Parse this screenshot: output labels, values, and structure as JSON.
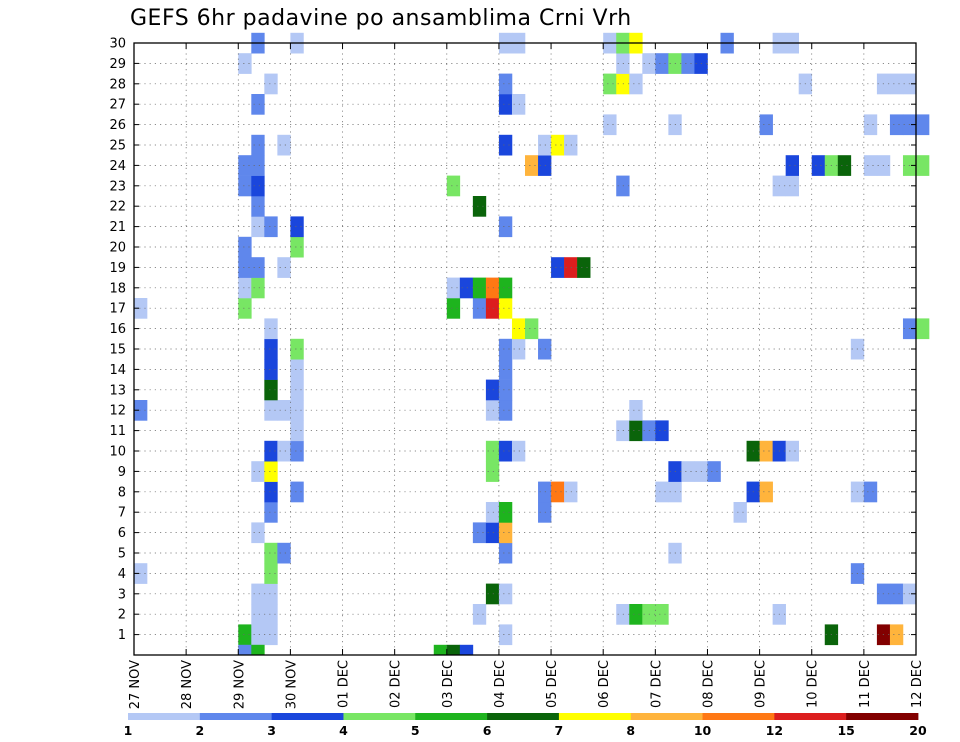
{
  "chart_data": {
    "type": "heatmap",
    "title": "GEFS 6hr padavine po ansamblima Crni Vrh",
    "xlabel": "",
    "ylabel": "",
    "x_tick_labels": [
      "27 NOV",
      "28 NOV",
      "29 NOV",
      "30 NOV",
      "01 DEC",
      "02 DEC",
      "03 DEC",
      "04 DEC",
      "05 DEC",
      "06 DEC",
      "07 DEC",
      "08 DEC",
      "09 DEC",
      "10 DEC",
      "11 DEC",
      "12 DEC"
    ],
    "x_range_days": [
      0,
      15
    ],
    "y_tick_labels": [
      "1",
      "2",
      "3",
      "4",
      "5",
      "6",
      "7",
      "8",
      "9",
      "10",
      "11",
      "12",
      "13",
      "14",
      "15",
      "16",
      "17",
      "18",
      "19",
      "20",
      "21",
      "22",
      "23",
      "24",
      "25",
      "26",
      "27",
      "28",
      "29",
      "30"
    ],
    "y_range": [
      0,
      30
    ],
    "time_step_days": 0.25,
    "grid": true,
    "colorbar": {
      "bounds": [
        1,
        2,
        3,
        4,
        5,
        6,
        7,
        8,
        10,
        12,
        15,
        20
      ],
      "labels": [
        "1",
        "2",
        "3",
        "4",
        "5",
        "6",
        "7",
        "8",
        "10",
        "12",
        "15",
        "20"
      ],
      "colors": [
        "#b4c8f5",
        "#5f87ec",
        "#1a46dc",
        "#78e664",
        "#1eb41e",
        "#0a640a",
        "#ffff00",
        "#ffb43c",
        "#ff7814",
        "#dc1e1e",
        "#820000"
      ],
      "position": "bottom"
    },
    "cells": [
      {
        "member": 1,
        "t": 8,
        "cls": 5
      },
      {
        "member": 1,
        "t": 9,
        "cls": 1
      },
      {
        "member": 1,
        "t": 10,
        "cls": 1
      },
      {
        "member": 1,
        "t": 28,
        "cls": 1
      },
      {
        "member": 1,
        "t": 53,
        "cls": 6
      },
      {
        "member": 1,
        "t": 57,
        "cls": 11
      },
      {
        "member": 1,
        "t": 58,
        "cls": 8
      },
      {
        "member": 2,
        "t": 9,
        "cls": 1
      },
      {
        "member": 2,
        "t": 10,
        "cls": 1
      },
      {
        "member": 2,
        "t": 26,
        "cls": 1
      },
      {
        "member": 2,
        "t": 37,
        "cls": 1
      },
      {
        "member": 2,
        "t": 38,
        "cls": 5
      },
      {
        "member": 2,
        "t": 39,
        "cls": 4
      },
      {
        "member": 2,
        "t": 40,
        "cls": 4
      },
      {
        "member": 2,
        "t": 49,
        "cls": 1
      },
      {
        "member": 3,
        "t": 9,
        "cls": 1
      },
      {
        "member": 3,
        "t": 10,
        "cls": 1
      },
      {
        "member": 3,
        "t": 27,
        "cls": 6
      },
      {
        "member": 3,
        "t": 28,
        "cls": 1
      },
      {
        "member": 3,
        "t": 57,
        "cls": 2
      },
      {
        "member": 3,
        "t": 58,
        "cls": 2
      },
      {
        "member": 3,
        "t": 59,
        "cls": 1
      },
      {
        "member": 4,
        "t": 0,
        "cls": 1
      },
      {
        "member": 4,
        "t": 10,
        "cls": 4
      },
      {
        "member": 4,
        "t": 55,
        "cls": 2
      },
      {
        "member": 5,
        "t": 10,
        "cls": 4
      },
      {
        "member": 5,
        "t": 11,
        "cls": 2
      },
      {
        "member": 5,
        "t": 28,
        "cls": 2
      },
      {
        "member": 5,
        "t": 41,
        "cls": 1
      },
      {
        "member": 6,
        "t": 9,
        "cls": 1
      },
      {
        "member": 6,
        "t": 26,
        "cls": 2
      },
      {
        "member": 6,
        "t": 27,
        "cls": 3
      },
      {
        "member": 6,
        "t": 28,
        "cls": 8
      },
      {
        "member": 7,
        "t": 10,
        "cls": 2
      },
      {
        "member": 7,
        "t": 27,
        "cls": 1
      },
      {
        "member": 7,
        "t": 28,
        "cls": 5
      },
      {
        "member": 7,
        "t": 31,
        "cls": 2
      },
      {
        "member": 7,
        "t": 46,
        "cls": 1
      },
      {
        "member": 8,
        "t": 10,
        "cls": 3
      },
      {
        "member": 8,
        "t": 12,
        "cls": 2
      },
      {
        "member": 8,
        "t": 31,
        "cls": 2
      },
      {
        "member": 8,
        "t": 32,
        "cls": 9
      },
      {
        "member": 8,
        "t": 33,
        "cls": 1
      },
      {
        "member": 8,
        "t": 40,
        "cls": 1
      },
      {
        "member": 8,
        "t": 41,
        "cls": 1
      },
      {
        "member": 8,
        "t": 47,
        "cls": 3
      },
      {
        "member": 8,
        "t": 48,
        "cls": 8
      },
      {
        "member": 8,
        "t": 55,
        "cls": 1
      },
      {
        "member": 8,
        "t": 56,
        "cls": 2
      },
      {
        "member": 9,
        "t": 9,
        "cls": 1
      },
      {
        "member": 9,
        "t": 10,
        "cls": 7
      },
      {
        "member": 9,
        "t": 27,
        "cls": 4
      },
      {
        "member": 9,
        "t": 41,
        "cls": 3
      },
      {
        "member": 9,
        "t": 42,
        "cls": 1
      },
      {
        "member": 9,
        "t": 43,
        "cls": 1
      },
      {
        "member": 9,
        "t": 44,
        "cls": 2
      },
      {
        "member": 10,
        "t": 10,
        "cls": 3
      },
      {
        "member": 10,
        "t": 11,
        "cls": 1
      },
      {
        "member": 10,
        "t": 12,
        "cls": 2
      },
      {
        "member": 10,
        "t": 27,
        "cls": 4
      },
      {
        "member": 10,
        "t": 28,
        "cls": 3
      },
      {
        "member": 10,
        "t": 29,
        "cls": 1
      },
      {
        "member": 10,
        "t": 47,
        "cls": 6
      },
      {
        "member": 10,
        "t": 48,
        "cls": 8
      },
      {
        "member": 10,
        "t": 49,
        "cls": 3
      },
      {
        "member": 10,
        "t": 50,
        "cls": 1
      },
      {
        "member": 11,
        "t": 12,
        "cls": 1
      },
      {
        "member": 11,
        "t": 37,
        "cls": 1
      },
      {
        "member": 11,
        "t": 38,
        "cls": 6
      },
      {
        "member": 11,
        "t": 39,
        "cls": 2
      },
      {
        "member": 11,
        "t": 40,
        "cls": 3
      },
      {
        "member": 12,
        "t": 0,
        "cls": 2
      },
      {
        "member": 12,
        "t": 10,
        "cls": 1
      },
      {
        "member": 12,
        "t": 11,
        "cls": 1
      },
      {
        "member": 12,
        "t": 12,
        "cls": 1
      },
      {
        "member": 12,
        "t": 27,
        "cls": 1
      },
      {
        "member": 12,
        "t": 28,
        "cls": 2
      },
      {
        "member": 12,
        "t": 38,
        "cls": 1
      },
      {
        "member": 13,
        "t": 10,
        "cls": 6
      },
      {
        "member": 13,
        "t": 12,
        "cls": 1
      },
      {
        "member": 13,
        "t": 27,
        "cls": 3
      },
      {
        "member": 13,
        "t": 28,
        "cls": 2
      },
      {
        "member": 14,
        "t": 10,
        "cls": 3
      },
      {
        "member": 14,
        "t": 12,
        "cls": 1
      },
      {
        "member": 14,
        "t": 28,
        "cls": 2
      },
      {
        "member": 15,
        "t": 10,
        "cls": 3
      },
      {
        "member": 15,
        "t": 12,
        "cls": 4
      },
      {
        "member": 15,
        "t": 28,
        "cls": 2
      },
      {
        "member": 15,
        "t": 29,
        "cls": 1
      },
      {
        "member": 15,
        "t": 31,
        "cls": 2
      },
      {
        "member": 15,
        "t": 55,
        "cls": 1
      },
      {
        "member": 16,
        "t": 10,
        "cls": 1
      },
      {
        "member": 16,
        "t": 29,
        "cls": 7
      },
      {
        "member": 16,
        "t": 30,
        "cls": 4
      },
      {
        "member": 16,
        "t": 59,
        "cls": 2
      },
      {
        "member": 16,
        "t": 60,
        "cls": 4
      },
      {
        "member": 17,
        "t": 0,
        "cls": 1
      },
      {
        "member": 17,
        "t": 8,
        "cls": 4
      },
      {
        "member": 17,
        "t": 24,
        "cls": 5
      },
      {
        "member": 17,
        "t": 26,
        "cls": 2
      },
      {
        "member": 17,
        "t": 27,
        "cls": 10
      },
      {
        "member": 17,
        "t": 28,
        "cls": 7
      },
      {
        "member": 18,
        "t": 8,
        "cls": 1
      },
      {
        "member": 18,
        "t": 9,
        "cls": 4
      },
      {
        "member": 18,
        "t": 24,
        "cls": 1
      },
      {
        "member": 18,
        "t": 25,
        "cls": 3
      },
      {
        "member": 18,
        "t": 26,
        "cls": 5
      },
      {
        "member": 18,
        "t": 27,
        "cls": 9
      },
      {
        "member": 18,
        "t": 28,
        "cls": 5
      },
      {
        "member": 19,
        "t": 8,
        "cls": 2
      },
      {
        "member": 19,
        "t": 9,
        "cls": 2
      },
      {
        "member": 19,
        "t": 11,
        "cls": 1
      },
      {
        "member": 19,
        "t": 32,
        "cls": 3
      },
      {
        "member": 19,
        "t": 33,
        "cls": 10
      },
      {
        "member": 19,
        "t": 34,
        "cls": 6
      },
      {
        "member": 20,
        "t": 8,
        "cls": 2
      },
      {
        "member": 20,
        "t": 12,
        "cls": 4
      },
      {
        "member": 21,
        "t": 9,
        "cls": 1
      },
      {
        "member": 21,
        "t": 10,
        "cls": 2
      },
      {
        "member": 21,
        "t": 12,
        "cls": 3
      },
      {
        "member": 21,
        "t": 28,
        "cls": 2
      },
      {
        "member": 22,
        "t": 9,
        "cls": 2
      },
      {
        "member": 22,
        "t": 26,
        "cls": 6
      },
      {
        "member": 23,
        "t": 8,
        "cls": 2
      },
      {
        "member": 23,
        "t": 9,
        "cls": 3
      },
      {
        "member": 23,
        "t": 24,
        "cls": 4
      },
      {
        "member": 23,
        "t": 37,
        "cls": 2
      },
      {
        "member": 23,
        "t": 49,
        "cls": 1
      },
      {
        "member": 23,
        "t": 50,
        "cls": 1
      },
      {
        "member": 24,
        "t": 8,
        "cls": 2
      },
      {
        "member": 24,
        "t": 9,
        "cls": 2
      },
      {
        "member": 24,
        "t": 30,
        "cls": 8
      },
      {
        "member": 24,
        "t": 31,
        "cls": 3
      },
      {
        "member": 24,
        "t": 50,
        "cls": 3
      },
      {
        "member": 24,
        "t": 52,
        "cls": 3
      },
      {
        "member": 24,
        "t": 53,
        "cls": 4
      },
      {
        "member": 24,
        "t": 54,
        "cls": 6
      },
      {
        "member": 24,
        "t": 56,
        "cls": 1
      },
      {
        "member": 24,
        "t": 57,
        "cls": 1
      },
      {
        "member": 24,
        "t": 59,
        "cls": 4
      },
      {
        "member": 24,
        "t": 60,
        "cls": 4
      },
      {
        "member": 25,
        "t": 9,
        "cls": 2
      },
      {
        "member": 25,
        "t": 11,
        "cls": 1
      },
      {
        "member": 25,
        "t": 28,
        "cls": 3
      },
      {
        "member": 25,
        "t": 31,
        "cls": 1
      },
      {
        "member": 25,
        "t": 32,
        "cls": 7
      },
      {
        "member": 25,
        "t": 33,
        "cls": 1
      },
      {
        "member": 26,
        "t": 36,
        "cls": 1
      },
      {
        "member": 26,
        "t": 41,
        "cls": 1
      },
      {
        "member": 26,
        "t": 48,
        "cls": 2
      },
      {
        "member": 26,
        "t": 56,
        "cls": 1
      },
      {
        "member": 26,
        "t": 58,
        "cls": 2
      },
      {
        "member": 26,
        "t": 59,
        "cls": 2
      },
      {
        "member": 26,
        "t": 60,
        "cls": 2
      },
      {
        "member": 27,
        "t": 9,
        "cls": 2
      },
      {
        "member": 27,
        "t": 28,
        "cls": 3
      },
      {
        "member": 27,
        "t": 29,
        "cls": 1
      },
      {
        "member": 28,
        "t": 10,
        "cls": 1
      },
      {
        "member": 28,
        "t": 28,
        "cls": 2
      },
      {
        "member": 28,
        "t": 36,
        "cls": 4
      },
      {
        "member": 28,
        "t": 37,
        "cls": 7
      },
      {
        "member": 28,
        "t": 38,
        "cls": 1
      },
      {
        "member": 28,
        "t": 51,
        "cls": 1
      },
      {
        "member": 28,
        "t": 57,
        "cls": 1
      },
      {
        "member": 28,
        "t": 58,
        "cls": 1
      },
      {
        "member": 28,
        "t": 59,
        "cls": 1
      },
      {
        "member": 29,
        "t": 8,
        "cls": 1
      },
      {
        "member": 29,
        "t": 37,
        "cls": 1
      },
      {
        "member": 29,
        "t": 39,
        "cls": 1
      },
      {
        "member": 29,
        "t": 40,
        "cls": 2
      },
      {
        "member": 29,
        "t": 41,
        "cls": 4
      },
      {
        "member": 29,
        "t": 42,
        "cls": 2
      },
      {
        "member": 29,
        "t": 43,
        "cls": 3
      },
      {
        "member": 30,
        "t": 9,
        "cls": 2
      },
      {
        "member": 30,
        "t": 12,
        "cls": 1
      },
      {
        "member": 30,
        "t": 28,
        "cls": 1
      },
      {
        "member": 30,
        "t": 29,
        "cls": 1
      },
      {
        "member": 30,
        "t": 36,
        "cls": 1
      },
      {
        "member": 30,
        "t": 37,
        "cls": 4
      },
      {
        "member": 30,
        "t": 38,
        "cls": 7
      },
      {
        "member": 30,
        "t": 45,
        "cls": 2
      },
      {
        "member": 30,
        "t": 49,
        "cls": 1
      },
      {
        "member": 30,
        "t": 50,
        "cls": 1
      },
      {
        "member": 0,
        "t": 8,
        "cls": 2
      },
      {
        "member": 0,
        "t": 9,
        "cls": 5
      },
      {
        "member": 0,
        "t": 23,
        "cls": 5
      },
      {
        "member": 0,
        "t": 24,
        "cls": 6
      },
      {
        "member": 0,
        "t": 25,
        "cls": 3
      }
    ]
  }
}
